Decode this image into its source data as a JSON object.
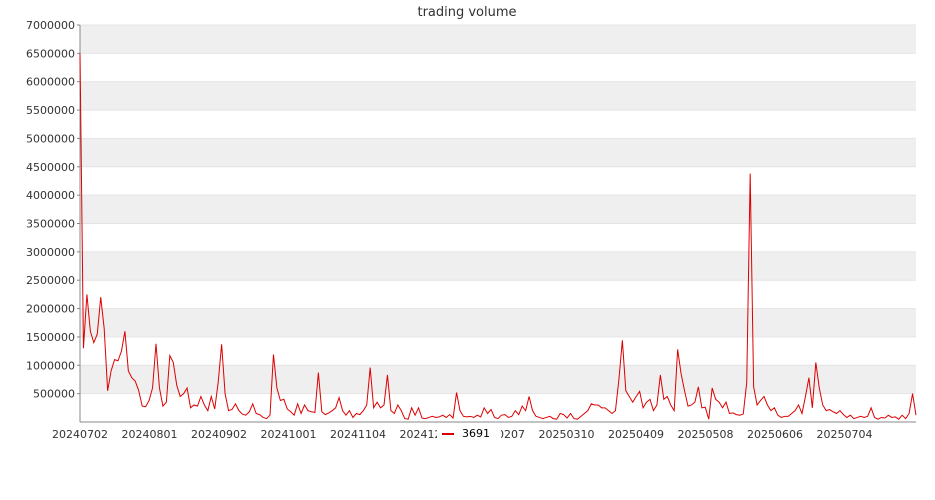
{
  "chart_data": {
    "type": "line",
    "title": "trading volume",
    "xlabel": "",
    "ylabel": "",
    "ylim": [
      0,
      7000000
    ],
    "yticks": [
      500000,
      1000000,
      1500000,
      2000000,
      2500000,
      3000000,
      3500000,
      4000000,
      4500000,
      5000000,
      5500000,
      6000000,
      6500000,
      7000000
    ],
    "x_tick_labels": [
      "20240702",
      "20240801",
      "20240902",
      "20241001",
      "20241104",
      "20241231",
      "20250207",
      "20250310",
      "20250409",
      "20250508",
      "20250606",
      "20250704"
    ],
    "grid": "horizontal, alternating bands",
    "legend": "bottom-center",
    "series": [
      {
        "name": "3691",
        "color": "#dd0000",
        "values": [
          6500000,
          1300000,
          2250000,
          1600000,
          1400000,
          1550000,
          2200000,
          1650000,
          550000,
          900000,
          1100000,
          1080000,
          1250000,
          1600000,
          900000,
          780000,
          720000,
          550000,
          280000,
          270000,
          380000,
          600000,
          1380000,
          600000,
          280000,
          350000,
          1170000,
          1050000,
          650000,
          450000,
          500000,
          600000,
          250000,
          300000,
          280000,
          450000,
          300000,
          200000,
          450000,
          230000,
          700000,
          1370000,
          500000,
          200000,
          220000,
          320000,
          200000,
          140000,
          120000,
          180000,
          320000,
          150000,
          130000,
          80000,
          60000,
          120000,
          1190000,
          600000,
          380000,
          400000,
          230000,
          180000,
          120000,
          320000,
          150000,
          300000,
          200000,
          180000,
          170000,
          870000,
          180000,
          130000,
          160000,
          200000,
          250000,
          430000,
          200000,
          120000,
          200000,
          80000,
          150000,
          130000,
          200000,
          300000,
          960000,
          250000,
          350000,
          250000,
          300000,
          830000,
          200000,
          150000,
          300000,
          200000,
          60000,
          50000,
          250000,
          120000,
          250000,
          70000,
          60000,
          80000,
          100000,
          80000,
          90000,
          120000,
          80000,
          130000,
          70000,
          520000,
          200000,
          100000,
          90000,
          100000,
          80000,
          120000,
          90000,
          250000,
          150000,
          220000,
          80000,
          60000,
          120000,
          130000,
          80000,
          100000,
          200000,
          130000,
          280000,
          200000,
          450000,
          200000,
          100000,
          80000,
          60000,
          80000,
          100000,
          60000,
          50000,
          150000,
          130000,
          70000,
          150000,
          60000,
          50000,
          100000,
          150000,
          200000,
          320000,
          300000,
          300000,
          250000,
          250000,
          200000,
          150000,
          200000,
          750000,
          1440000,
          550000,
          450000,
          350000,
          450000,
          540000,
          250000,
          350000,
          400000,
          200000,
          300000,
          830000,
          400000,
          450000,
          300000,
          200000,
          1280000,
          850000,
          550000,
          280000,
          300000,
          350000,
          620000,
          250000,
          260000,
          50000,
          600000,
          400000,
          350000,
          250000,
          350000,
          150000,
          160000,
          130000,
          120000,
          140000,
          700000,
          4380000,
          620000,
          300000,
          380000,
          450000,
          300000,
          200000,
          250000,
          120000,
          80000,
          100000,
          100000,
          150000,
          200000,
          300000,
          150000,
          450000,
          780000,
          250000,
          1050000,
          600000,
          300000,
          200000,
          220000,
          180000,
          150000,
          200000,
          130000,
          80000,
          120000,
          60000,
          80000,
          100000,
          80000,
          100000,
          250000,
          80000,
          50000,
          80000,
          70000,
          120000,
          80000,
          90000,
          50000,
          120000,
          60000,
          150000,
          500000,
          120000
        ]
      }
    ]
  }
}
